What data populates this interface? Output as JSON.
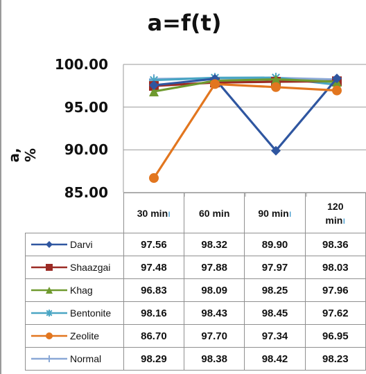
{
  "chart_data": {
    "type": "line",
    "title": "a=f(t)",
    "ylabel": "a, %",
    "xlabel": "",
    "ylim": [
      85,
      100
    ],
    "yticks": [
      "100.00",
      "95.00",
      "90.00",
      "85.00"
    ],
    "categories": [
      "30  min",
      "60 min",
      "90 min",
      "120 min"
    ],
    "legend": "table-below",
    "series": [
      {
        "name": "Darvi",
        "color": "#2f56a0",
        "marker": "diamond",
        "values": [
          97.56,
          98.32,
          89.9,
          98.36
        ]
      },
      {
        "name": "Shaazgai",
        "color": "#9b2a24",
        "marker": "square",
        "values": [
          97.48,
          97.88,
          97.97,
          98.03
        ]
      },
      {
        "name": "Khag",
        "color": "#6f9a2f",
        "marker": "triangle",
        "values": [
          96.83,
          98.09,
          98.25,
          97.96
        ]
      },
      {
        "name": "Bentonite",
        "color": "#4aa6c4",
        "marker": "star",
        "values": [
          98.16,
          98.43,
          98.45,
          97.62
        ]
      },
      {
        "name": "Zeolite",
        "color": "#e2761f",
        "marker": "circle",
        "values": [
          86.7,
          97.7,
          97.34,
          96.95
        ]
      },
      {
        "name": "Normal",
        "color": "#8aa8d6",
        "marker": "plus",
        "values": [
          98.29,
          98.38,
          98.42,
          98.23
        ]
      }
    ]
  },
  "table": {
    "values_text": [
      [
        "97.56",
        "98.32",
        "89.90",
        "98.36"
      ],
      [
        "97.48",
        "97.88",
        "97.97",
        "98.03"
      ],
      [
        "96.83",
        "98.09",
        "98.25",
        "97.96"
      ],
      [
        "98.16",
        "98.43",
        "98.45",
        "97.62"
      ],
      [
        "86.70",
        "97.70",
        "97.34",
        "96.95"
      ],
      [
        "98.29",
        "98.38",
        "98.42",
        "98.23"
      ]
    ],
    "col_label_lines": [
      [
        "30  min"
      ],
      [
        "60 min"
      ],
      [
        "90 min"
      ],
      [
        "120",
        "min"
      ]
    ]
  }
}
